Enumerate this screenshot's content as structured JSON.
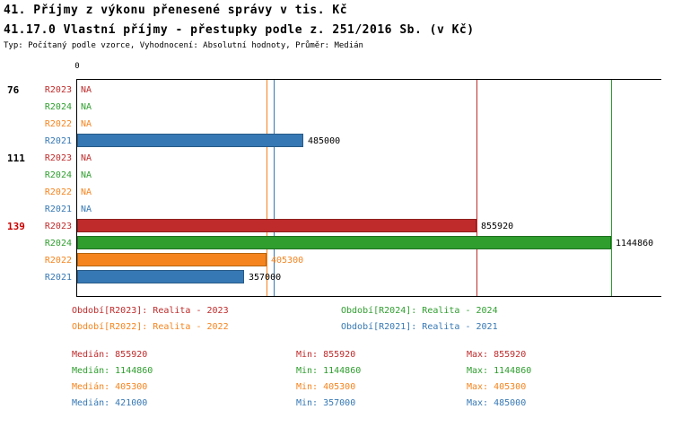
{
  "header": {
    "title_line1": "41. Příjmy z výkonu přenesené správy v tis. Kč",
    "title_line2": "41.17.0 Vlastní příjmy - přestupky podle z. 251/2016 Sb. (v Kč)",
    "meta_line": "Typ: Počítaný podle vzorce, Vyhodnocení: Absolutní hodnoty, Průměr: Medián"
  },
  "axis": {
    "zero_label": "0"
  },
  "series_colors": {
    "R2023": "#bf2b2b",
    "R2024": "#2f9e2f",
    "R2022": "#f5841e",
    "R2021": "#3678b4"
  },
  "series_border_colors": {
    "R2023": "#8e1f1f",
    "R2024": "#1f6f1f",
    "R2022": "#b56410",
    "R2021": "#275a87"
  },
  "chart_data": {
    "type": "bar",
    "orientation": "horizontal",
    "value_axis_max": 1144860,
    "value_axis_min": 0,
    "grid": false,
    "groups": [
      {
        "label": "76",
        "label_color": "#000000",
        "bars": [
          {
            "series": "R2023",
            "value": null,
            "display": "NA"
          },
          {
            "series": "R2024",
            "value": null,
            "display": "NA"
          },
          {
            "series": "R2022",
            "value": null,
            "display": "NA"
          },
          {
            "series": "R2021",
            "value": 485000,
            "display": "485000",
            "value_label_color": "#000000"
          }
        ]
      },
      {
        "label": "111",
        "label_color": "#000000",
        "bars": [
          {
            "series": "R2023",
            "value": null,
            "display": "NA"
          },
          {
            "series": "R2024",
            "value": null,
            "display": "NA"
          },
          {
            "series": "R2022",
            "value": null,
            "display": "NA"
          },
          {
            "series": "R2021",
            "value": null,
            "display": "NA"
          }
        ]
      },
      {
        "label": "139",
        "label_color": "#cc0000",
        "bars": [
          {
            "series": "R2023",
            "value": 855920,
            "display": "855920",
            "value_label_color": "#000000"
          },
          {
            "series": "R2024",
            "value": 1144860,
            "display": "1144860",
            "value_label_color": "#000000"
          },
          {
            "series": "R2022",
            "value": 405300,
            "display": "405300",
            "value_label_color": "#f5841e"
          },
          {
            "series": "R2021",
            "value": 357000,
            "display": "357000",
            "value_label_color": "#000000"
          }
        ]
      }
    ],
    "reference_lines": [
      {
        "series": "R2023",
        "value": 855920,
        "meaning": "median"
      },
      {
        "series": "R2024",
        "value": 1144860,
        "meaning": "median"
      },
      {
        "series": "R2022",
        "value": 405300,
        "meaning": "median"
      },
      {
        "series": "R2021",
        "value": 421000,
        "meaning": "median"
      }
    ]
  },
  "legend": {
    "items": [
      {
        "series": "R2023",
        "label": "Období[R2023]: Realita - 2023"
      },
      {
        "series": "R2024",
        "label": "Období[R2024]: Realita - 2024"
      },
      {
        "series": "R2022",
        "label": "Období[R2022]: Realita - 2022"
      },
      {
        "series": "R2021",
        "label": "Období[R2021]: Realita - 2021"
      }
    ]
  },
  "stats": {
    "rows": [
      {
        "series": "R2023",
        "median": "Medián: 855920",
        "min": "Min: 855920",
        "max": "Max: 855920"
      },
      {
        "series": "R2024",
        "median": "Medián: 1144860",
        "min": "Min: 1144860",
        "max": "Max: 1144860"
      },
      {
        "series": "R2022",
        "median": "Medián: 405300",
        "min": "Min: 405300",
        "max": "Max: 405300"
      },
      {
        "series": "R2021",
        "median": "Medián: 421000",
        "min": "Min: 357000",
        "max": "Max: 485000"
      }
    ]
  }
}
